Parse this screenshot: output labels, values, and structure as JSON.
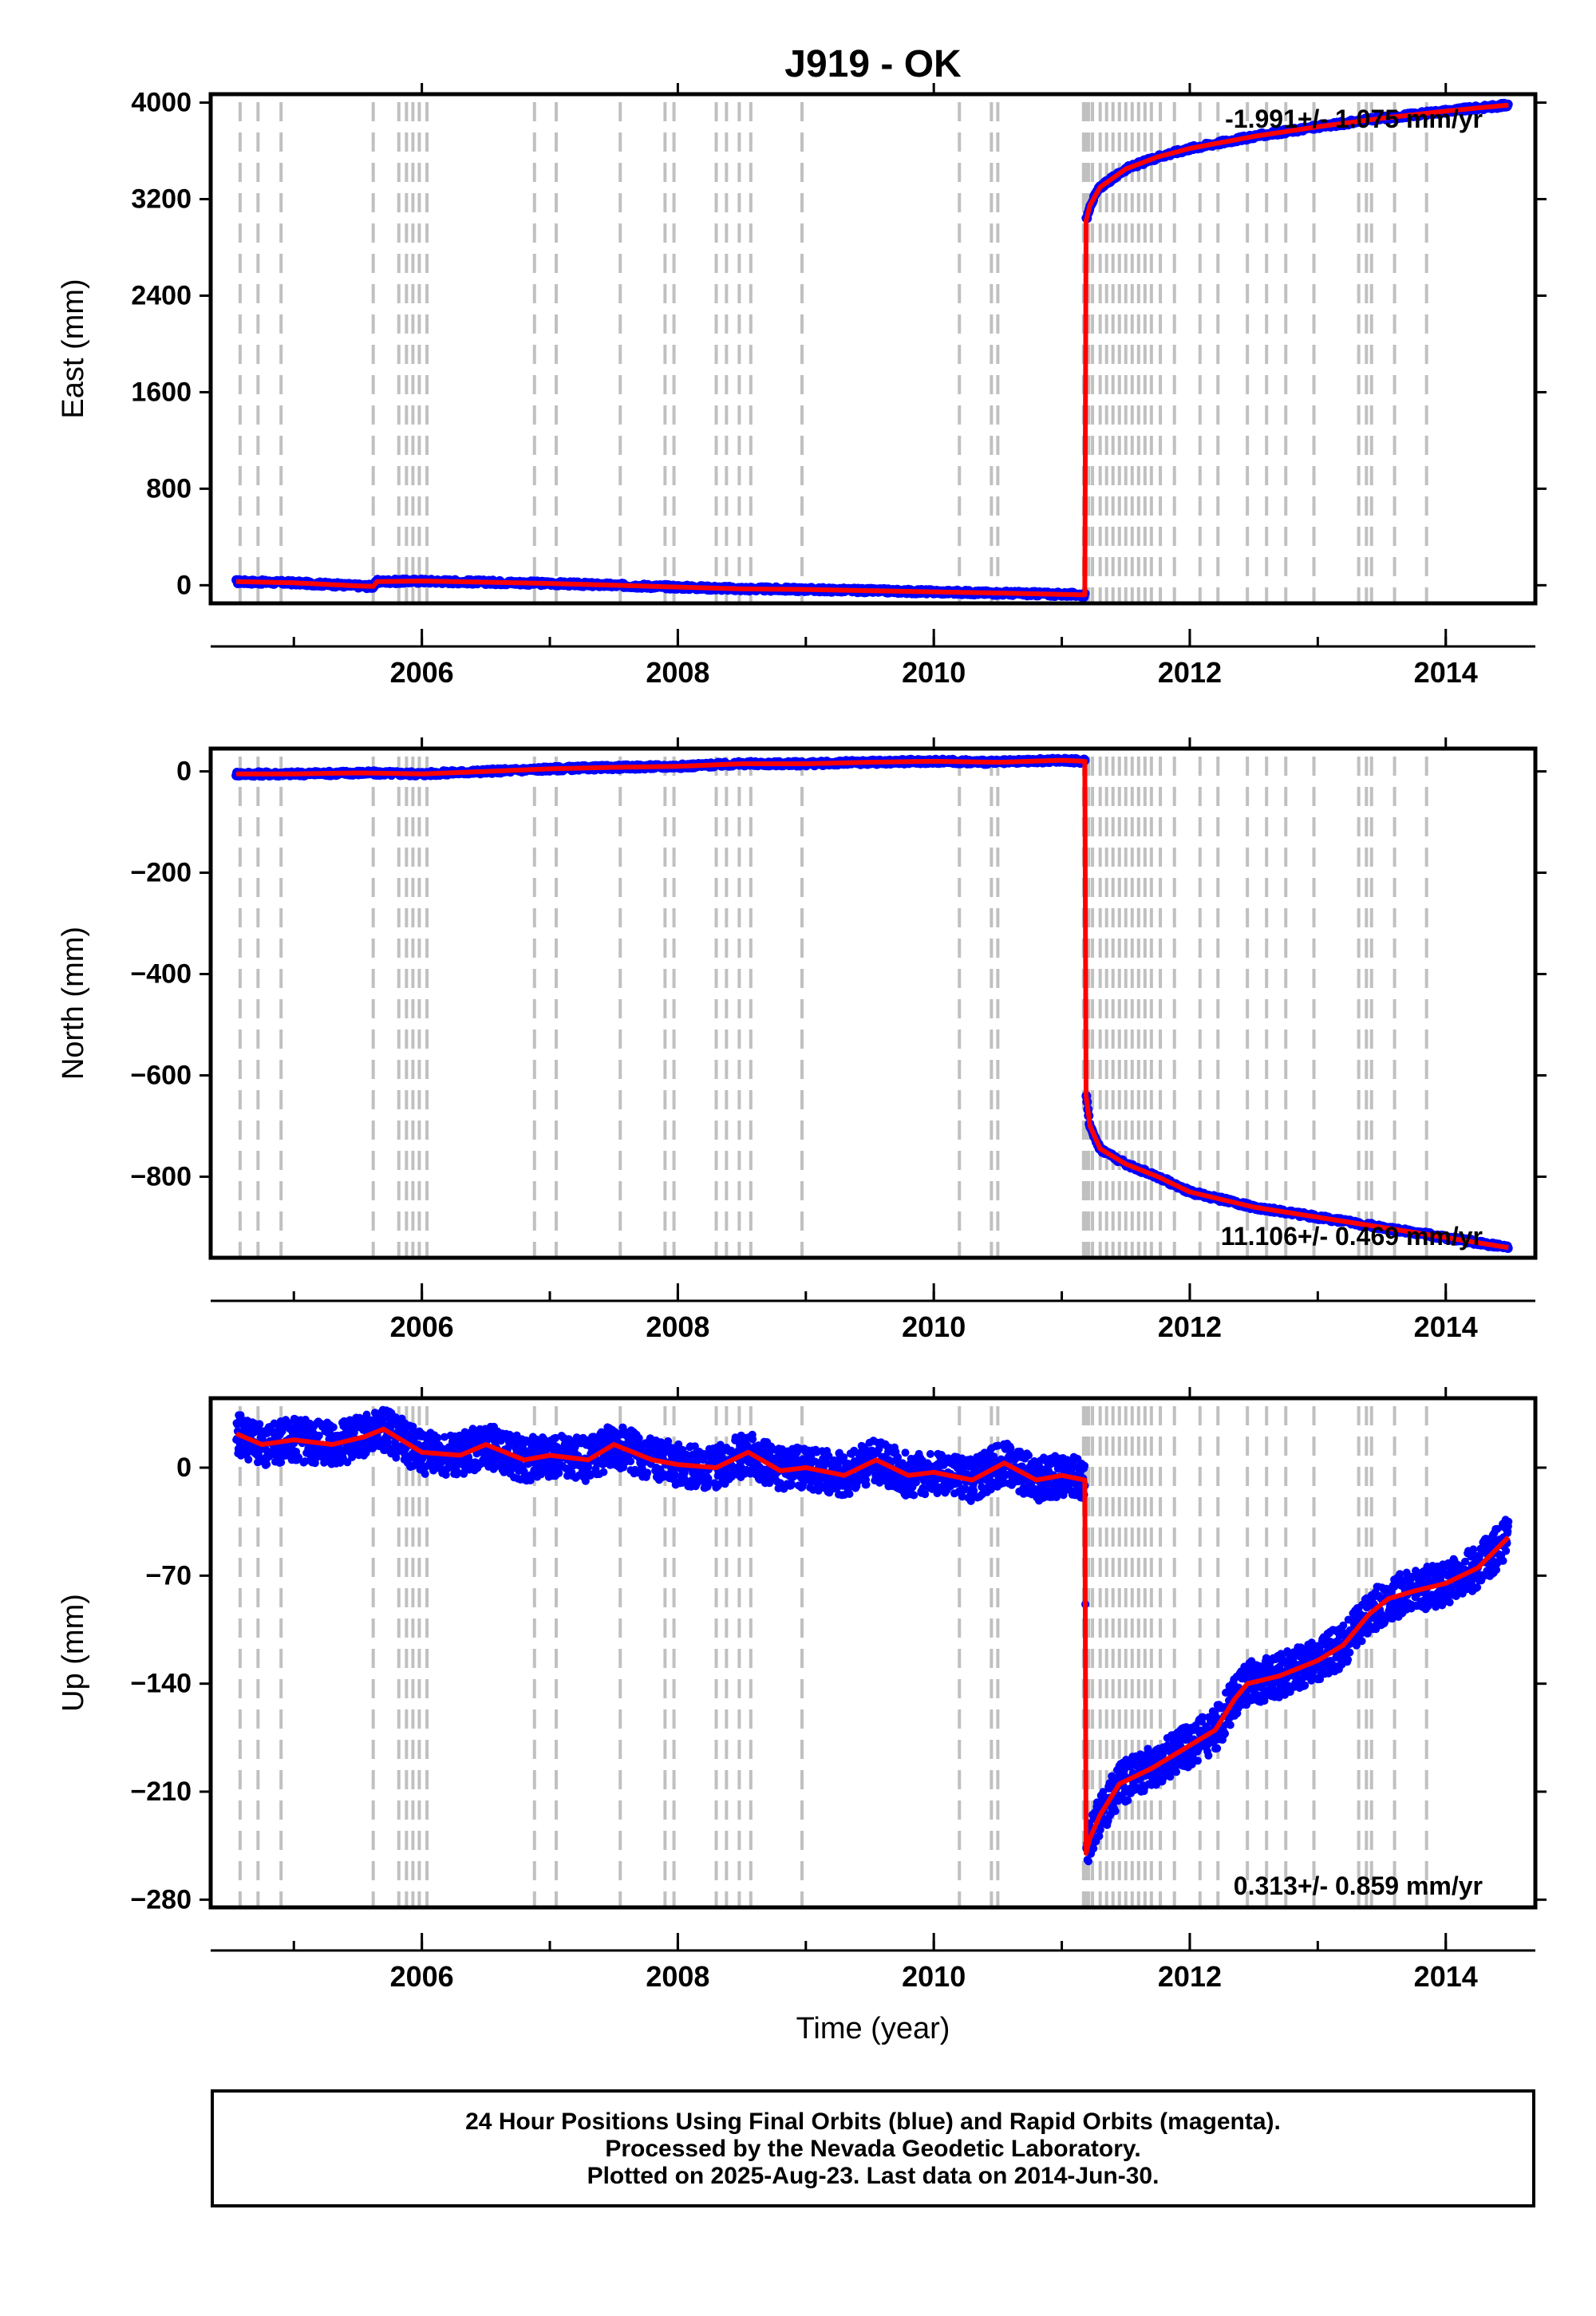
{
  "title": "J919 - OK",
  "colors": {
    "final_orbits": "#0000ff",
    "model": "#ff0000",
    "offset_lines": "#c0c0c0",
    "axis": "#000000"
  },
  "chart_data": [
    {
      "type": "scatter",
      "ylabel": "East (mm)",
      "xlabel": "",
      "xlim": [
        2004.35,
        2014.7
      ],
      "ylim": [
        -150,
        4070
      ],
      "yticks": [
        0,
        800,
        1600,
        2400,
        3200,
        4000
      ],
      "xticks": [
        2006,
        2008,
        2010,
        2012,
        2014
      ],
      "rate_label": "-1.991+/- 1.075 mm/yr",
      "rate_position": "top-right",
      "series": [
        {
          "x": [
            2004.55,
            2005.0,
            2005.5,
            2005.62,
            2005.65,
            2006.0,
            2006.5,
            2007.0,
            2007.5,
            2008.0,
            2008.5,
            2009.0,
            2009.5,
            2010.0,
            2010.5,
            2011.0,
            2011.18,
            2011.19,
            2011.22,
            2011.3,
            2011.5,
            2011.75,
            2012.0,
            2012.5,
            2013.0,
            2013.5,
            2014.0,
            2014.49
          ],
          "y": [
            30,
            20,
            -5,
            -10,
            30,
            35,
            25,
            15,
            0,
            -15,
            -30,
            -35,
            -45,
            -55,
            -65,
            -75,
            -80,
            3020,
            3150,
            3300,
            3450,
            3550,
            3620,
            3720,
            3800,
            3870,
            3930,
            3980
          ]
        }
      ]
    },
    {
      "type": "scatter",
      "ylabel": "North (mm)",
      "xlabel": "",
      "xlim": [
        2004.35,
        2014.7
      ],
      "ylim": [
        -960,
        45
      ],
      "yticks": [
        0,
        -200,
        -400,
        -600,
        -800
      ],
      "xticks": [
        2006,
        2008,
        2010,
        2012,
        2014
      ],
      "rate_label": "11.106+/- 0.469 mm/yr",
      "rate_position": "bottom-right",
      "series": [
        {
          "x": [
            2004.55,
            2005.0,
            2005.5,
            2006.0,
            2006.5,
            2007.0,
            2007.5,
            2008.0,
            2008.5,
            2009.0,
            2009.5,
            2010.0,
            2010.5,
            2011.0,
            2011.18,
            2011.19,
            2011.22,
            2011.3,
            2011.5,
            2011.75,
            2012.0,
            2012.5,
            2013.0,
            2013.5,
            2014.0,
            2014.49
          ],
          "y": [
            -5,
            -5,
            -3,
            -5,
            0,
            5,
            8,
            10,
            15,
            15,
            18,
            20,
            18,
            22,
            20,
            -640,
            -700,
            -745,
            -775,
            -800,
            -830,
            -860,
            -880,
            -900,
            -920,
            -940
          ]
        }
      ]
    },
    {
      "type": "scatter",
      "ylabel": "Up (mm)",
      "xlabel": "Time (year)",
      "xlim": [
        2004.35,
        2014.7
      ],
      "ylim": [
        -285,
        45
      ],
      "yticks": [
        0,
        -70,
        -140,
        -210,
        -280
      ],
      "xticks": [
        2006,
        2008,
        2010,
        2012,
        2014
      ],
      "rate_label": "0.313+/- 0.859 mm/yr",
      "rate_position": "bottom-right",
      "series": [
        {
          "x": [
            2004.55,
            2004.75,
            2005.0,
            2005.3,
            2005.55,
            2005.7,
            2006.0,
            2006.3,
            2006.5,
            2006.8,
            2007.0,
            2007.3,
            2007.5,
            2007.8,
            2008.0,
            2008.3,
            2008.55,
            2008.8,
            2009.0,
            2009.3,
            2009.55,
            2009.8,
            2010.0,
            2010.3,
            2010.55,
            2010.8,
            2011.0,
            2011.18,
            2011.19,
            2011.22,
            2011.3,
            2011.45,
            2011.7,
            2012.0,
            2012.2,
            2012.35,
            2012.45,
            2012.7,
            2013.0,
            2013.2,
            2013.4,
            2013.55,
            2013.75,
            2014.0,
            2014.25,
            2014.49
          ],
          "y": [
            22,
            15,
            18,
            15,
            20,
            25,
            10,
            8,
            15,
            5,
            8,
            5,
            15,
            5,
            2,
            0,
            10,
            -2,
            0,
            -5,
            5,
            -5,
            -3,
            -8,
            3,
            -8,
            -5,
            -8,
            -250,
            -240,
            -225,
            -205,
            -195,
            -180,
            -170,
            -150,
            -140,
            -135,
            -125,
            -115,
            -95,
            -85,
            -80,
            -75,
            -65,
            -45
          ]
        }
      ]
    }
  ],
  "offset_epochs": [
    2004.58,
    2004.72,
    2004.9,
    2005.62,
    2005.82,
    2005.88,
    2005.93,
    2005.98,
    2006.04,
    2006.88,
    2007.05,
    2007.55,
    2007.9,
    2007.97,
    2008.3,
    2008.38,
    2008.48,
    2008.57,
    2008.97,
    2010.2,
    2010.45,
    2010.5,
    2011.17,
    2011.19,
    2011.21,
    2011.24,
    2011.3,
    2011.35,
    2011.4,
    2011.45,
    2011.5,
    2011.55,
    2011.6,
    2011.65,
    2011.7,
    2011.77,
    2011.88,
    2012.08,
    2012.22,
    2012.45,
    2012.6,
    2012.75,
    2012.97,
    2013.32,
    2013.38,
    2013.42,
    2013.6,
    2013.85
  ],
  "footer": {
    "line1": "24 Hour Positions Using Final Orbits (blue) and Rapid Orbits (magenta).",
    "line2": "Processed by the Nevada Geodetic Laboratory.",
    "line3": "Plotted on 2025-Aug-23. Last data on 2014-Jun-30."
  }
}
